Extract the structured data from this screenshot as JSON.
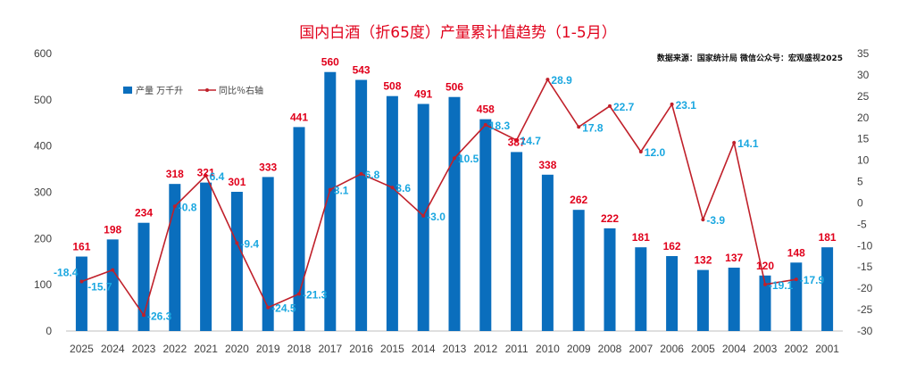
{
  "chart_data": {
    "type": "bar",
    "title": "国内白酒（折65度）产量累计值趋势（1-5月）",
    "source": "数据来源：国家统计局  微信公众号：宏观盛视2025",
    "categories": [
      "2025",
      "2024",
      "2023",
      "2022",
      "2021",
      "2020",
      "2019",
      "2018",
      "2017",
      "2016",
      "2015",
      "2014",
      "2013",
      "2012",
      "2011",
      "2010",
      "2009",
      "2008",
      "2007",
      "2006",
      "2005",
      "2004",
      "2003",
      "2002",
      "2001"
    ],
    "series": [
      {
        "name": "产量 万千升",
        "axis": "left",
        "type": "bar",
        "values": [
          161,
          198,
          234,
          318,
          321,
          301,
          333,
          441,
          560,
          543,
          508,
          491,
          506,
          458,
          387,
          338,
          262,
          222,
          181,
          162,
          132,
          137,
          120,
          148,
          181
        ]
      },
      {
        "name": "同比％右轴",
        "axis": "right",
        "type": "line",
        "values": [
          -18.4,
          -15.7,
          -26.3,
          -0.8,
          6.4,
          -9.4,
          -24.5,
          -21.3,
          3.1,
          6.8,
          3.6,
          -3.0,
          10.5,
          18.3,
          14.7,
          28.9,
          17.8,
          22.7,
          12.0,
          23.1,
          -3.9,
          14.1,
          -19.1,
          -17.9,
          null
        ],
        "labels": [
          "-18.4",
          "-15.7",
          "-26.3",
          "-0.8",
          "6.4",
          "-9.4",
          "-24.5",
          "-21.3",
          "3.1",
          "6.8",
          "3.6",
          "-3.0",
          "10.5",
          "18.3",
          "14.7",
          "28.9",
          "17.8",
          "22.7",
          "12.0",
          "23.1",
          "-3.9",
          "14.1",
          "-19.1",
          "-17.9",
          ""
        ]
      }
    ],
    "y_left": {
      "min": 0,
      "max": 600,
      "ticks": [
        "0",
        "100",
        "200",
        "300",
        "400",
        "500",
        "600"
      ]
    },
    "y_right": {
      "min": -30,
      "max": 35,
      "ticks": [
        "-30",
        "-25",
        "-20",
        "-15",
        "-10",
        "-5",
        "0",
        "5",
        "10",
        "15",
        "20",
        "25",
        "30",
        "35"
      ]
    },
    "legend_position": "top-left",
    "colors": {
      "bar": "#0a6ebd",
      "line": "#c0202a",
      "bar_label": "#e0001b",
      "line_label": "#1aa7e0",
      "title": "#e0001b"
    }
  }
}
